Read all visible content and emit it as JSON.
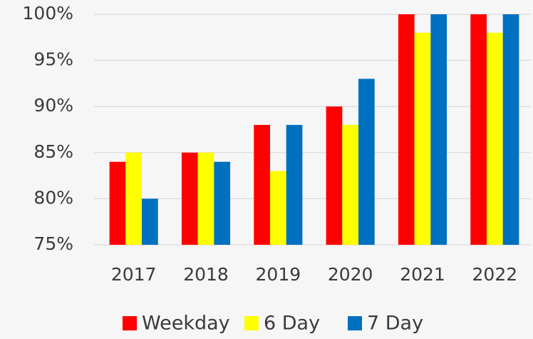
{
  "chart_data": {
    "type": "bar",
    "categories": [
      "2017",
      "2018",
      "2019",
      "2020",
      "2021",
      "2022"
    ],
    "series": [
      {
        "name": "Weekday",
        "color": "#ff0000",
        "values": [
          84,
          85,
          88,
          90,
          100,
          100
        ]
      },
      {
        "name": "6 Day",
        "color": "#ffff00",
        "values": [
          85,
          85,
          83,
          88,
          98,
          98
        ]
      },
      {
        "name": "7 Day",
        "color": "#0070c0",
        "values": [
          80,
          84,
          88,
          93,
          100,
          100
        ]
      }
    ],
    "ylim": [
      75,
      100
    ],
    "yticks": [
      {
        "value": 75,
        "label": "75%"
      },
      {
        "value": 80,
        "label": "80%"
      },
      {
        "value": 85,
        "label": "85%"
      },
      {
        "value": 90,
        "label": "90%"
      },
      {
        "value": 95,
        "label": "95%"
      },
      {
        "value": 100,
        "label": "100%"
      }
    ],
    "grid": true,
    "legend": "bottom"
  }
}
